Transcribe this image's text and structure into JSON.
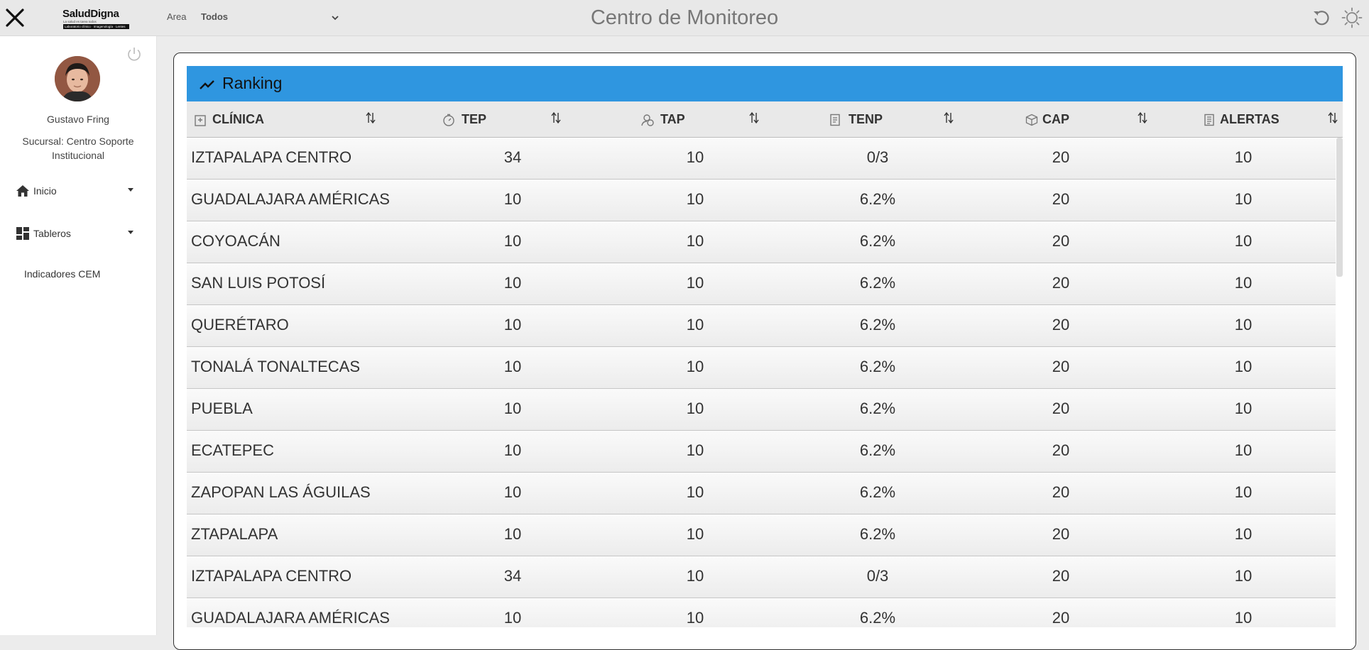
{
  "header": {
    "title": "Centro de Monitoreo",
    "logo": {
      "name": "SaludDigna",
      "tagline": "La salud es tarea todos",
      "services": "Laboratorio clínico · Imagenología · Lentes"
    },
    "area_label": "Area",
    "area_value": "Todos",
    "icons": {
      "close": "close-icon",
      "dropdown": "chevron-down-icon",
      "refresh": "refresh-icon",
      "theme": "sun-icon"
    }
  },
  "sidebar": {
    "user_name": "Gustavo Fring",
    "branch": "Sucursal: Centro Soporte Institucional",
    "power_icon": "power-icon",
    "items": [
      {
        "label": "Inicio",
        "icon": "home-icon"
      },
      {
        "label": "Tableros",
        "icon": "dashboard-icon"
      }
    ],
    "subitems": [
      {
        "label": "Indicadores CEM"
      }
    ]
  },
  "ranking": {
    "title": "Ranking",
    "title_icon": "trending-up-icon",
    "accent_color": "#2f96e0",
    "columns": [
      {
        "label": "CLÍNICA",
        "icon": "clinic-icon"
      },
      {
        "label": "TEP",
        "icon": "timer-icon"
      },
      {
        "label": "TAP",
        "icon": "user-clock-icon"
      },
      {
        "label": "TENP",
        "icon": "report-icon"
      },
      {
        "label": "CAP",
        "icon": "box-icon"
      },
      {
        "label": "ALERTAS",
        "icon": "document-icon"
      }
    ],
    "rows": [
      {
        "clinica": "IZTAPALAPA CENTRO",
        "tep": "34",
        "tap": "10",
        "tenp": "0/3",
        "cap": "20",
        "alertas": "10"
      },
      {
        "clinica": "GUADALAJARA AMÉRICAS",
        "tep": "10",
        "tap": "10",
        "tenp": "6.2%",
        "cap": "20",
        "alertas": "10"
      },
      {
        "clinica": "COYOACÁN",
        "tep": "10",
        "tap": "10",
        "tenp": "6.2%",
        "cap": "20",
        "alertas": "10"
      },
      {
        "clinica": "SAN LUIS POTOSÍ",
        "tep": "10",
        "tap": "10",
        "tenp": "6.2%",
        "cap": "20",
        "alertas": "10"
      },
      {
        "clinica": "QUERÉTARO",
        "tep": "10",
        "tap": "10",
        "tenp": "6.2%",
        "cap": "20",
        "alertas": "10"
      },
      {
        "clinica": "TONALÁ TONALTECAS",
        "tep": "10",
        "tap": "10",
        "tenp": "6.2%",
        "cap": "20",
        "alertas": "10"
      },
      {
        "clinica": "PUEBLA",
        "tep": "10",
        "tap": "10",
        "tenp": "6.2%",
        "cap": "20",
        "alertas": "10"
      },
      {
        "clinica": "ECATEPEC",
        "tep": "10",
        "tap": "10",
        "tenp": "6.2%",
        "cap": "20",
        "alertas": "10"
      },
      {
        "clinica": "ZAPOPAN LAS ÁGUILAS",
        "tep": "10",
        "tap": "10",
        "tenp": "6.2%",
        "cap": "20",
        "alertas": "10"
      },
      {
        "clinica": "ZTAPALAPA",
        "tep": "10",
        "tap": "10",
        "tenp": "6.2%",
        "cap": "20",
        "alertas": "10"
      },
      {
        "clinica": "IZTAPALAPA CENTRO",
        "tep": "34",
        "tap": "10",
        "tenp": "0/3",
        "cap": "20",
        "alertas": "10"
      },
      {
        "clinica": "GUADALAJARA AMÉRICAS",
        "tep": "10",
        "tap": "10",
        "tenp": "6.2%",
        "cap": "20",
        "alertas": "10"
      }
    ]
  }
}
